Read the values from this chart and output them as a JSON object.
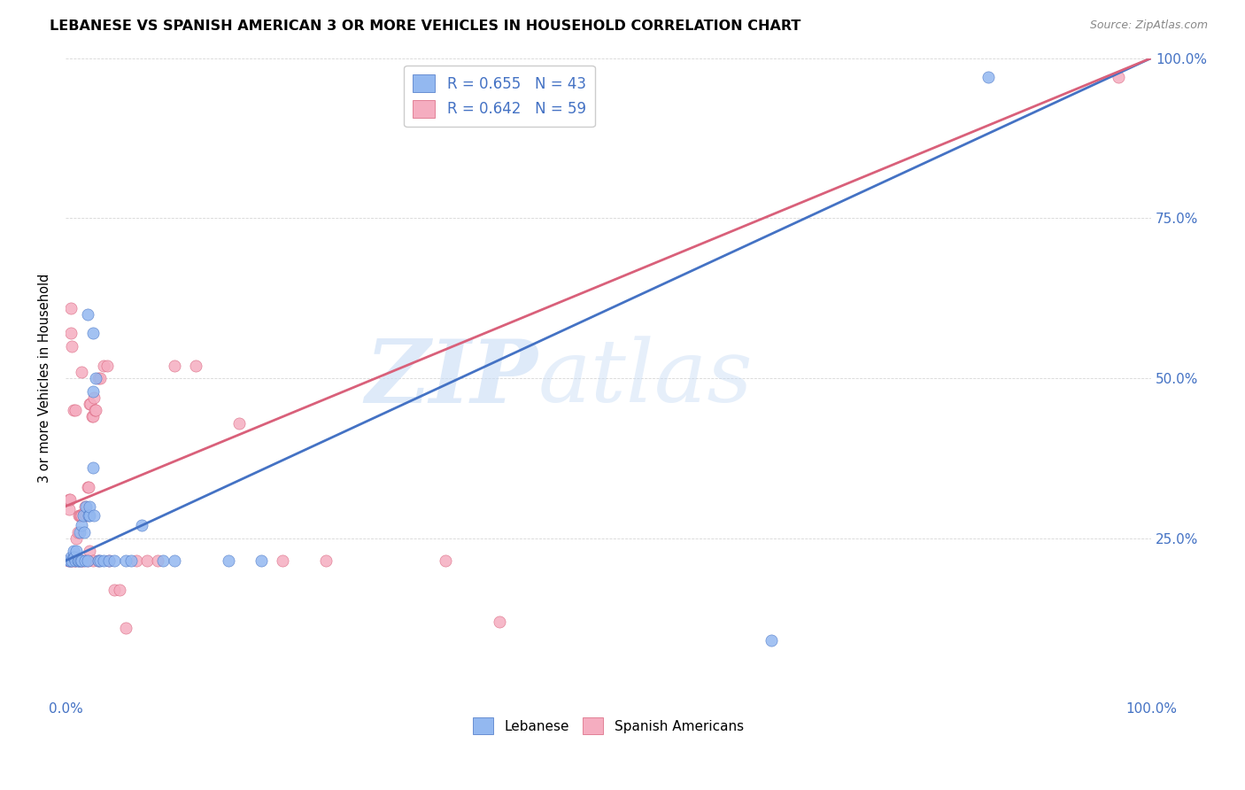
{
  "title": "LEBANESE VS SPANISH AMERICAN 3 OR MORE VEHICLES IN HOUSEHOLD CORRELATION CHART",
  "source": "Source: ZipAtlas.com",
  "ylabel": "3 or more Vehicles in Household",
  "xlim": [
    0,
    1.0
  ],
  "ylim": [
    0,
    1.0
  ],
  "ytick_positions": [
    0.25,
    0.5,
    0.75,
    1.0
  ],
  "ytick_labels": [
    "25.0%",
    "50.0%",
    "75.0%",
    "100.0%"
  ],
  "xtick_positions": [
    0.0,
    0.25,
    0.5,
    0.75,
    1.0
  ],
  "xtick_labels": [
    "0.0%",
    "",
    "",
    "",
    "100.0%"
  ],
  "right_ytick_color": "#4472c4",
  "xtick_color": "#4472c4",
  "legend_line1": "R = 0.655   N = 43",
  "legend_line2": "R = 0.642   N = 59",
  "lebanese_color": "#93b8f0",
  "spanish_color": "#f5adc0",
  "trendline_lebanese_color": "#4472c4",
  "trendline_spanish_color": "#d9607a",
  "watermark_part1": "ZIP",
  "watermark_part2": "atlas",
  "lebanese_label": "Lebanese",
  "spanish_label": "Spanish Americans",
  "lebanese_trend_x0": 0.0,
  "lebanese_trend_y0": 0.215,
  "lebanese_trend_x1": 1.0,
  "lebanese_trend_y1": 1.0,
  "spanish_trend_x0": 0.0,
  "spanish_trend_y0": 0.3,
  "spanish_trend_x1": 1.0,
  "spanish_trend_y1": 1.0,
  "lebanese_scatter": [
    [
      0.003,
      0.215
    ],
    [
      0.004,
      0.215
    ],
    [
      0.005,
      0.22
    ],
    [
      0.006,
      0.215
    ],
    [
      0.007,
      0.22
    ],
    [
      0.007,
      0.23
    ],
    [
      0.008,
      0.22
    ],
    [
      0.009,
      0.215
    ],
    [
      0.01,
      0.23
    ],
    [
      0.011,
      0.215
    ],
    [
      0.012,
      0.215
    ],
    [
      0.013,
      0.26
    ],
    [
      0.014,
      0.215
    ],
    [
      0.015,
      0.27
    ],
    [
      0.015,
      0.215
    ],
    [
      0.016,
      0.285
    ],
    [
      0.017,
      0.26
    ],
    [
      0.018,
      0.215
    ],
    [
      0.019,
      0.3
    ],
    [
      0.02,
      0.215
    ],
    [
      0.021,
      0.285
    ],
    [
      0.022,
      0.285
    ],
    [
      0.022,
      0.3
    ],
    [
      0.025,
      0.36
    ],
    [
      0.026,
      0.285
    ],
    [
      0.03,
      0.215
    ],
    [
      0.032,
      0.215
    ],
    [
      0.035,
      0.215
    ],
    [
      0.04,
      0.215
    ],
    [
      0.045,
      0.215
    ],
    [
      0.055,
      0.215
    ],
    [
      0.06,
      0.215
    ],
    [
      0.07,
      0.27
    ],
    [
      0.09,
      0.215
    ],
    [
      0.1,
      0.215
    ],
    [
      0.15,
      0.215
    ],
    [
      0.18,
      0.215
    ],
    [
      0.025,
      0.57
    ],
    [
      0.02,
      0.6
    ],
    [
      0.025,
      0.48
    ],
    [
      0.028,
      0.5
    ],
    [
      0.85,
      0.97
    ],
    [
      0.65,
      0.09
    ]
  ],
  "spanish_scatter": [
    [
      0.002,
      0.215
    ],
    [
      0.003,
      0.31
    ],
    [
      0.003,
      0.295
    ],
    [
      0.004,
      0.31
    ],
    [
      0.005,
      0.215
    ],
    [
      0.005,
      0.61
    ],
    [
      0.006,
      0.215
    ],
    [
      0.006,
      0.55
    ],
    [
      0.007,
      0.22
    ],
    [
      0.007,
      0.45
    ],
    [
      0.008,
      0.215
    ],
    [
      0.009,
      0.215
    ],
    [
      0.009,
      0.45
    ],
    [
      0.01,
      0.25
    ],
    [
      0.011,
      0.26
    ],
    [
      0.012,
      0.215
    ],
    [
      0.012,
      0.285
    ],
    [
      0.013,
      0.285
    ],
    [
      0.014,
      0.285
    ],
    [
      0.015,
      0.285
    ],
    [
      0.015,
      0.215
    ],
    [
      0.015,
      0.51
    ],
    [
      0.016,
      0.215
    ],
    [
      0.017,
      0.29
    ],
    [
      0.018,
      0.3
    ],
    [
      0.019,
      0.285
    ],
    [
      0.02,
      0.33
    ],
    [
      0.02,
      0.215
    ],
    [
      0.021,
      0.33
    ],
    [
      0.022,
      0.23
    ],
    [
      0.022,
      0.46
    ],
    [
      0.023,
      0.46
    ],
    [
      0.024,
      0.44
    ],
    [
      0.025,
      0.44
    ],
    [
      0.025,
      0.215
    ],
    [
      0.026,
      0.47
    ],
    [
      0.027,
      0.45
    ],
    [
      0.028,
      0.45
    ],
    [
      0.03,
      0.5
    ],
    [
      0.03,
      0.215
    ],
    [
      0.032,
      0.5
    ],
    [
      0.035,
      0.52
    ],
    [
      0.038,
      0.52
    ],
    [
      0.04,
      0.215
    ],
    [
      0.045,
      0.17
    ],
    [
      0.05,
      0.17
    ],
    [
      0.055,
      0.11
    ],
    [
      0.065,
      0.215
    ],
    [
      0.075,
      0.215
    ],
    [
      0.085,
      0.215
    ],
    [
      0.1,
      0.52
    ],
    [
      0.12,
      0.52
    ],
    [
      0.16,
      0.43
    ],
    [
      0.2,
      0.215
    ],
    [
      0.24,
      0.215
    ],
    [
      0.35,
      0.215
    ],
    [
      0.4,
      0.12
    ],
    [
      0.005,
      0.57
    ],
    [
      0.97,
      0.97
    ]
  ]
}
